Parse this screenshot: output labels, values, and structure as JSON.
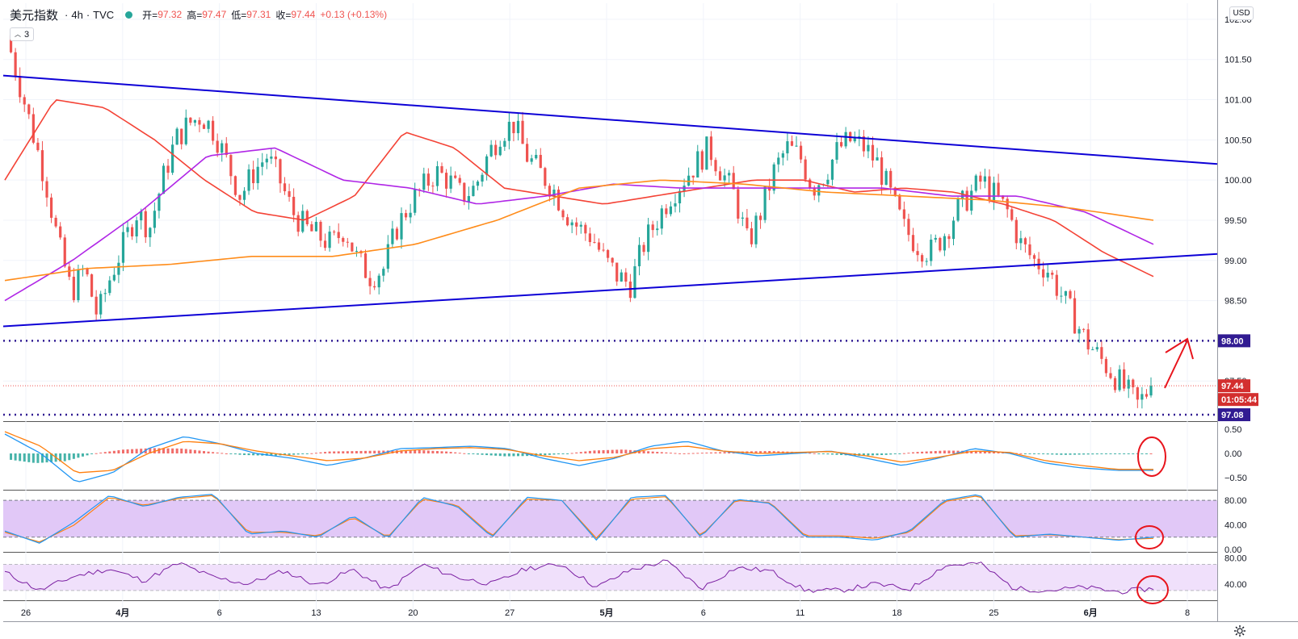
{
  "header": {
    "symbol": "美元指数",
    "interval": "4h",
    "source": "TVC",
    "open_label": "开=",
    "open_value": "97.32",
    "high_label": "高=",
    "high_value": "97.47",
    "low_label": "低=",
    "low_value": "97.31",
    "close_label": "收=",
    "close_value": "97.44",
    "change": "+0.13 (+0.13%)"
  },
  "indicators_button": {
    "count": "3"
  },
  "currency_button": "USD",
  "colors": {
    "bull": "#26a69a",
    "bear": "#ef5350",
    "trendline": "#0d00d6",
    "level_line": "#311b92",
    "ema_red": "#f44336",
    "ema_purple": "#b026e6",
    "ema_orange": "#ff8c1a",
    "macd_line": "#2196f3",
    "signal_line": "#ff7f0e",
    "annotation": "#e8141c",
    "stoch_band": "#e1c8f7",
    "rsi_band": "#f0e0fb",
    "rsi_line": "#7b1fa2"
  },
  "chart_data": [
    {
      "type": "candlestick",
      "symbol": "美元指数",
      "interval": "4h",
      "y_axis": {
        "ticks": [
          "102.00",
          "101.50",
          "101.00",
          "100.50",
          "100.00",
          "99.50",
          "99.00",
          "98.50",
          "98.00",
          "97.50"
        ],
        "ylim": [
          97.0,
          102.2
        ]
      },
      "x_axis": {
        "ticks": [
          "26",
          "4月",
          "6",
          "13",
          "20",
          "27",
          "5月",
          "6",
          "11",
          "18",
          "25",
          "6月",
          "8"
        ]
      },
      "close_path": [
        101.8,
        101.2,
        100.6,
        100.0,
        99.2,
        98.6,
        98.9,
        98.3,
        98.8,
        99.2,
        99.6,
        99.4,
        100.0,
        100.5,
        100.7,
        100.8,
        100.6,
        100.2,
        99.8,
        100.1,
        100.3,
        100.0,
        99.6,
        99.4,
        99.3,
        99.2,
        99.4,
        99.0,
        98.8,
        98.9,
        99.4,
        99.7,
        99.9,
        100.1,
        100.0,
        99.8,
        99.9,
        100.3,
        100.6,
        100.7,
        100.3,
        100.1,
        99.9,
        99.6,
        99.4,
        99.3,
        99.0,
        98.8,
        98.7,
        99.2,
        99.5,
        99.8,
        100.0,
        100.2,
        100.4,
        100.1,
        99.8,
        99.2,
        99.6,
        100.1,
        100.4,
        100.3,
        99.9,
        100.1,
        100.4,
        100.5,
        100.4,
        100.2,
        99.8,
        99.4,
        99.2,
        99.1,
        99.3,
        99.6,
        99.8,
        100.0,
        99.8,
        99.6,
        99.2,
        99.0,
        98.9,
        98.6,
        98.3,
        98.0,
        97.8,
        97.6,
        97.4,
        97.2,
        97.44
      ],
      "last_candle": {
        "open": 97.32,
        "high": 97.47,
        "low": 97.31,
        "close": 97.44
      },
      "series": [
        {
          "values": [
            100.0,
            101.0,
            100.9,
            100.5,
            100.0,
            99.6,
            99.5,
            99.8,
            100.6,
            100.4,
            99.9,
            99.8,
            99.7,
            99.8,
            99.9,
            100.0,
            100.0,
            99.85,
            99.9,
            99.85,
            99.7,
            99.5,
            99.1,
            98.8
          ]
        },
        {
          "values": [
            98.5,
            99.0,
            99.6,
            100.3,
            100.4,
            100.0,
            99.9,
            99.7,
            99.8,
            99.95,
            99.9,
            99.9,
            99.9,
            99.9,
            99.8,
            99.8,
            99.6,
            99.2
          ]
        },
        {
          "values": [
            98.75,
            98.9,
            98.95,
            99.05,
            99.05,
            99.2,
            99.5,
            99.9,
            100.0,
            99.95,
            99.85,
            99.8,
            99.75,
            99.65,
            99.5
          ]
        }
      ],
      "trendlines": [
        {
          "from": [
            0,
            101.3
          ],
          "to": [
            1,
            100.2
          ]
        },
        {
          "from": [
            0,
            98.18
          ],
          "to": [
            1,
            99.08
          ]
        }
      ],
      "horizontal_levels": [
        "98.00",
        "97.08"
      ],
      "price_labels": {
        "last": "97.44",
        "countdown": "01:05:44",
        "level_top": "98.00",
        "level_bottom": "97.08"
      },
      "annotation": "arrow up"
    },
    {
      "type": "macd",
      "y_axis": {
        "ticks": [
          "0.50",
          "0.00",
          "−0.50"
        ],
        "ylim": [
          -0.75,
          0.65
        ]
      },
      "histogram": [
        -0.12,
        -0.2,
        -0.16,
        0.0,
        0.08,
        0.11,
        0.1,
        0.03,
        -0.03,
        -0.05,
        -0.02,
        0.04,
        0.05,
        0.06,
        0.07,
        0.04,
        -0.02,
        -0.06,
        -0.05,
        -0.01,
        0.06,
        0.08,
        0.04,
        0.0,
        0.02,
        0.04,
        0.05,
        0.03,
        -0.02,
        -0.05,
        -0.03,
        0.03,
        0.06,
        0.05,
        0.02,
        -0.01,
        -0.03,
        -0.02,
        -0.01,
        0.0
      ],
      "macd_line": [
        0.4,
        0.0,
        -0.6,
        -0.4,
        0.1,
        0.35,
        0.2,
        0.0,
        -0.1,
        -0.25,
        -0.1,
        0.1,
        0.12,
        0.15,
        0.1,
        -0.1,
        -0.25,
        -0.1,
        0.15,
        0.25,
        0.05,
        -0.05,
        0.0,
        0.05,
        -0.1,
        -0.25,
        -0.1,
        0.1,
        0.0,
        -0.2,
        -0.3,
        -0.35,
        -0.35
      ],
      "signal_line": [
        0.45,
        0.15,
        -0.4,
        -0.35,
        0.0,
        0.25,
        0.2,
        0.05,
        -0.05,
        -0.15,
        -0.1,
        0.05,
        0.1,
        0.12,
        0.08,
        -0.05,
        -0.15,
        -0.08,
        0.1,
        0.15,
        0.05,
        0.0,
        0.02,
        0.04,
        -0.05,
        -0.18,
        -0.08,
        0.05,
        0.02,
        -0.15,
        -0.25,
        -0.33,
        -0.33
      ]
    },
    {
      "type": "stochastic",
      "y_axis": {
        "ticks": [
          "80.00",
          "40.00",
          "0.00"
        ],
        "ylim": [
          -4,
          96
        ]
      },
      "band": [
        20,
        80
      ],
      "k_line": [
        30,
        10,
        45,
        88,
        70,
        85,
        90,
        25,
        30,
        20,
        55,
        18,
        85,
        70,
        20,
        85,
        80,
        15,
        85,
        88,
        20,
        82,
        75,
        20,
        20,
        15,
        30,
        80,
        90,
        20,
        25,
        20,
        15,
        20
      ],
      "d_line": [
        28,
        12,
        40,
        85,
        72,
        83,
        88,
        28,
        28,
        22,
        52,
        20,
        82,
        72,
        22,
        82,
        80,
        18,
        82,
        86,
        22,
        80,
        76,
        22,
        22,
        18,
        28,
        78,
        88,
        22,
        24,
        20,
        16,
        18
      ]
    },
    {
      "type": "rsi",
      "y_axis": {
        "ticks": [
          "80.00",
          "40.00"
        ],
        "ylim": [
          15,
          88
        ]
      },
      "band": [
        30,
        70
      ],
      "values": [
        58,
        30,
        52,
        63,
        45,
        72,
        50,
        40,
        60,
        38,
        62,
        30,
        70,
        50,
        40,
        64,
        70,
        35,
        62,
        75,
        33,
        65,
        60,
        30,
        30,
        40,
        32,
        68,
        72,
        33,
        30,
        35,
        28,
        33
      ]
    }
  ]
}
